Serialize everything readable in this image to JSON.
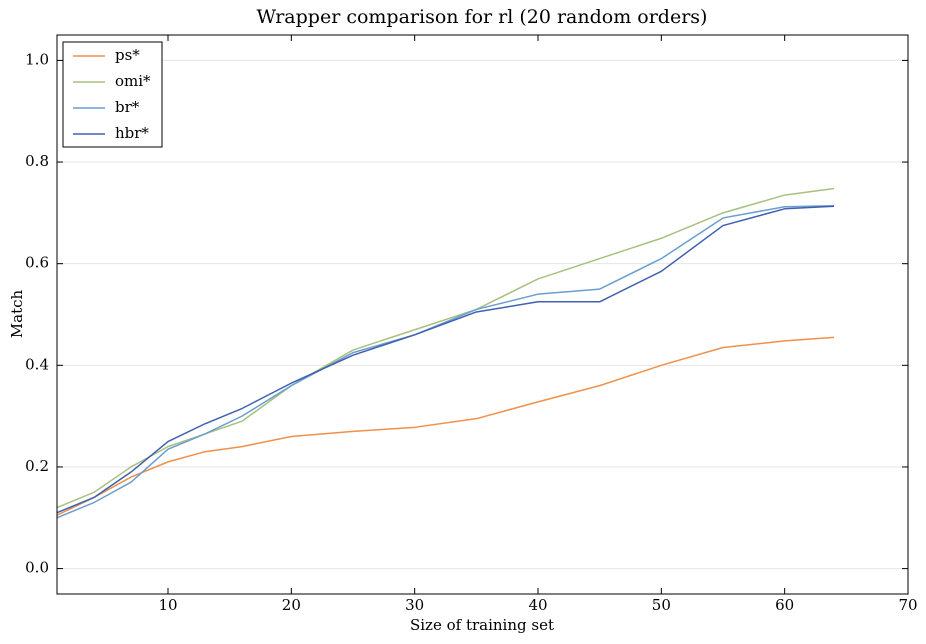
{
  "chart_data": {
    "type": "line",
    "title": "Wrapper comparison for rl (20 random orders)",
    "x_label": "Size of training set",
    "y_label": "Match",
    "x": [
      1,
      4,
      7,
      10,
      13,
      16,
      20,
      25,
      30,
      35,
      40,
      45,
      50,
      55,
      60,
      64
    ],
    "series": [
      {
        "name": "ps*",
        "color": "#f0904a",
        "values": [
          0.105,
          0.14,
          0.18,
          0.21,
          0.23,
          0.24,
          0.26,
          0.27,
          0.278,
          0.295,
          0.328,
          0.36,
          0.4,
          0.435,
          0.448,
          0.455
        ]
      },
      {
        "name": "omi*",
        "color": "#a8c080",
        "values": [
          0.12,
          0.15,
          0.2,
          0.24,
          0.265,
          0.29,
          0.36,
          0.43,
          0.47,
          0.51,
          0.57,
          0.61,
          0.65,
          0.7,
          0.735,
          0.748
        ]
      },
      {
        "name": "br*",
        "color": "#6a9ed0",
        "values": [
          0.1,
          0.13,
          0.17,
          0.235,
          0.265,
          0.3,
          0.36,
          0.425,
          0.46,
          0.51,
          0.54,
          0.55,
          0.61,
          0.69,
          0.712,
          0.714
        ]
      },
      {
        "name": "hbr*",
        "color": "#4060b0",
        "values": [
          0.11,
          0.14,
          0.19,
          0.25,
          0.285,
          0.315,
          0.365,
          0.42,
          0.46,
          0.505,
          0.525,
          0.525,
          0.585,
          0.675,
          0.708,
          0.713
        ]
      }
    ],
    "xlim": [
      1,
      70
    ],
    "xticks": [
      10,
      20,
      30,
      40,
      50,
      60,
      70
    ],
    "ylim": [
      -0.05,
      1.05
    ],
    "yticks": [
      {
        "value": 0,
        "label": "0.0"
      },
      {
        "value": 0.2,
        "label": "0.2"
      },
      {
        "value": 0.4,
        "label": "0.4"
      },
      {
        "value": 0.6,
        "label": "0.6"
      },
      {
        "value": 0.8,
        "label": "0.8"
      },
      {
        "value": 1,
        "label": "1.0"
      }
    ],
    "grid": true,
    "legend": "upper-left"
  }
}
